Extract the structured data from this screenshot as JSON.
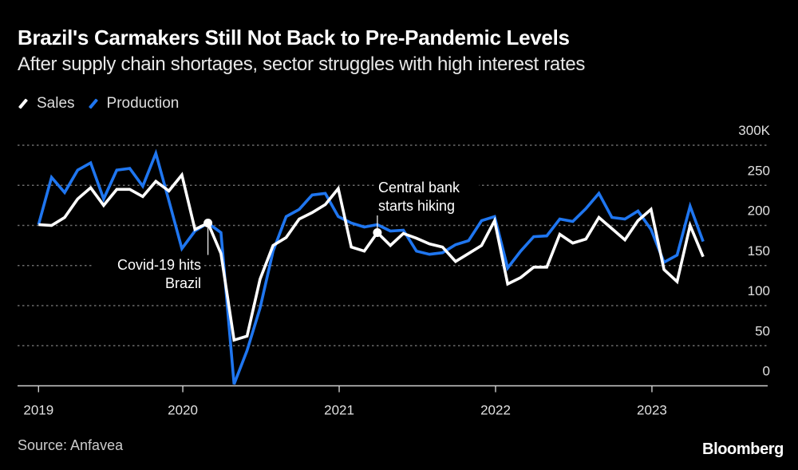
{
  "header": {
    "title": "Brazil's Carmakers Still Not Back to Pre-Pandemic Levels",
    "subtitle": "After supply chain shortages, sector struggles with high interest rates"
  },
  "legend": [
    {
      "label": "Sales",
      "color": "#ffffff"
    },
    {
      "label": "Production",
      "color": "#1f76f0"
    }
  ],
  "footer": {
    "source": "Source: Anfavea",
    "brand": "Bloomberg"
  },
  "chart_data": {
    "type": "line",
    "title": "Brazil's Carmakers Still Not Back to Pre-Pandemic Levels",
    "subtitle": "After supply chain shortages, sector struggles with high interest rates",
    "xlabel": "",
    "ylabel": "",
    "x_start": "2019-01",
    "x_frequency": "monthly",
    "x_ticks": [
      "2019",
      "2020",
      "2021",
      "2022",
      "2023"
    ],
    "y_ticks": [
      "0",
      "50",
      "100",
      "150",
      "200",
      "250",
      "300K"
    ],
    "ylim": [
      0,
      300
    ],
    "y_unit": "thousand vehicles",
    "grid": true,
    "legend_position": "top-left",
    "series": [
      {
        "name": "Sales",
        "color": "#ffffff",
        "values": [
          201,
          200,
          210,
          233,
          247,
          225,
          245,
          245,
          236,
          255,
          243,
          263,
          195,
          203,
          165,
          57,
          62,
          133,
          175,
          185,
          208,
          216,
          226,
          246,
          173,
          168,
          191,
          175,
          190,
          184,
          177,
          173,
          155,
          165,
          175,
          206,
          127,
          135,
          148,
          148,
          189,
          178,
          183,
          210,
          196,
          182,
          206,
          220,
          145,
          130,
          200,
          161
        ]
      },
      {
        "name": "Production",
        "color": "#1f76f0",
        "values": [
          201,
          260,
          241,
          269,
          278,
          233,
          269,
          271,
          249,
          290,
          231,
          171,
          193,
          203,
          191,
          2,
          44,
          97,
          168,
          211,
          220,
          238,
          240,
          211,
          203,
          198,
          201,
          193,
          194,
          168,
          164,
          166,
          176,
          181,
          206,
          211,
          147,
          168,
          186,
          187,
          208,
          205,
          221,
          240,
          210,
          208,
          218,
          195,
          154,
          163,
          224,
          180
        ]
      }
    ],
    "annotations": [
      {
        "text_lines": [
          "Covid-19 hits",
          "Brazil"
        ],
        "series": "Sales",
        "month": "2020-02"
      },
      {
        "text_lines": [
          "Central bank",
          "starts hiking"
        ],
        "series": "Sales",
        "month": "2021-03"
      }
    ]
  }
}
